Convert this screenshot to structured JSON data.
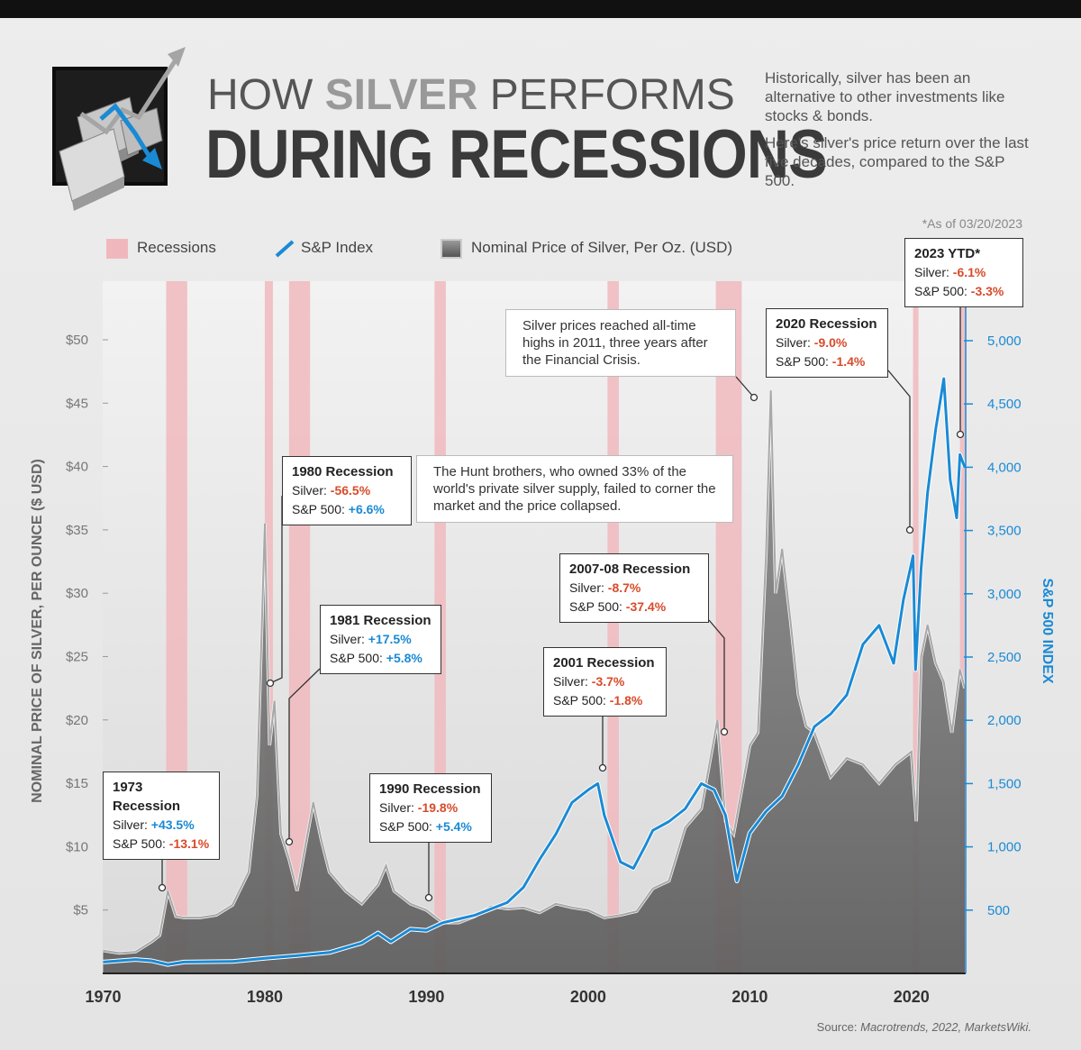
{
  "header": {
    "title_pre": "HOW ",
    "title_highlight": "SILVER",
    "title_post": " PERFORMS",
    "title_line2": "DURING RECESSIONS",
    "intro_1": "Historically, silver has been an alternative to other investments like stocks & bonds.",
    "intro_2": "Here's silver's price return over the last five decades, compared to the S&P 500.",
    "as_of": "*As of 03/20/2023"
  },
  "legend": {
    "recessions": "Recessions",
    "sp": "S&P Index",
    "silver": "Nominal Price of Silver, Per Oz. (USD)"
  },
  "source_label": "Source:",
  "source_text": "Macrotrends, 2022, MarketsWiki.",
  "colors": {
    "recession": "#f0b8bd",
    "sp_line": "#1a8ad4",
    "silver_line": "#a8a8a8",
    "negative": "#d84b2a",
    "positive": "#1a8ad4"
  },
  "chart_data": {
    "type": "area",
    "title": "",
    "x_range": [
      1970,
      2023.3
    ],
    "x_ticks": [
      "1970",
      "1980",
      "1990",
      "2000",
      "2010",
      "2020"
    ],
    "left_axis": {
      "label": "NOMINAL PRICE OF SILVER, PER OUNCE ($ USD)",
      "range": [
        0,
        55
      ],
      "ticks": [
        "$5",
        "$10",
        "$15",
        "$20",
        "$25",
        "$30",
        "$35",
        "$40",
        "$45",
        "$50"
      ]
    },
    "right_axis": {
      "label": "S&P 500 INDEX",
      "range": [
        0,
        5500
      ],
      "ticks": [
        "500",
        "1,000",
        "1,500",
        "2,000",
        "2,500",
        "3,000",
        "3,500",
        "4,000",
        "4,500",
        "5,000"
      ]
    },
    "recessions": [
      [
        1973.9,
        1975.2
      ],
      [
        1980.0,
        1980.5
      ],
      [
        1981.5,
        1982.8
      ],
      [
        1990.5,
        1991.2
      ],
      [
        2001.2,
        2001.9
      ],
      [
        2007.9,
        2009.5
      ],
      [
        2020.1,
        2020.4
      ],
      [
        2023.0,
        2023.3
      ]
    ],
    "series": [
      {
        "name": "Nominal Price of Silver, Per Oz. (USD)",
        "axis": "left",
        "x": [
          1970,
          1971,
          1972,
          1973,
          1973.5,
          1974,
          1974.5,
          1975,
          1976,
          1977,
          1978,
          1979,
          1979.5,
          1980,
          1980.3,
          1980.6,
          1981,
          1981.5,
          1982,
          1982.5,
          1983,
          1983.5,
          1984,
          1985,
          1986,
          1987,
          1987.5,
          1988,
          1989,
          1990,
          1991,
          1992,
          1993,
          1994,
          1995,
          1996,
          1997,
          1998,
          1999,
          2000,
          2001,
          2002,
          2003,
          2004,
          2005,
          2006,
          2007,
          2008,
          2008.5,
          2009,
          2010,
          2010.5,
          2011,
          2011.3,
          2011.6,
          2012,
          2012.5,
          2013,
          2013.5,
          2014,
          2015,
          2016,
          2017,
          2018,
          2019,
          2020,
          2020.3,
          2020.6,
          2021,
          2021.5,
          2022,
          2022.5,
          2023,
          2023.3
        ],
        "y": [
          1.8,
          1.6,
          1.7,
          2.5,
          3.0,
          6.5,
          4.5,
          4.4,
          4.4,
          4.6,
          5.4,
          8.0,
          14.0,
          35.5,
          18.0,
          21.5,
          11.0,
          9.0,
          6.5,
          10.0,
          13.5,
          10.5,
          8.0,
          6.5,
          5.5,
          7.0,
          8.5,
          6.5,
          5.5,
          5.0,
          4.0,
          4.0,
          4.5,
          5.3,
          5.1,
          5.2,
          4.8,
          5.5,
          5.2,
          5.0,
          4.4,
          4.6,
          4.9,
          6.7,
          7.3,
          11.5,
          13.0,
          20.0,
          12.0,
          11.0,
          18.0,
          19.0,
          33.0,
          46.0,
          30.0,
          33.5,
          28.0,
          22.0,
          19.5,
          19.0,
          15.5,
          17.0,
          16.5,
          15.0,
          16.5,
          17.5,
          12.0,
          25.0,
          27.5,
          24.5,
          23.0,
          19.0,
          24.0,
          22.5
        ]
      },
      {
        "name": "S&P Index",
        "axis": "right",
        "x": [
          1970,
          1972,
          1973,
          1974,
          1975,
          1978,
          1980,
          1982,
          1984,
          1986,
          1987,
          1987.8,
          1989,
          1990,
          1991,
          1993,
          1995,
          1996,
          1997,
          1998,
          1999,
          2000,
          2000.6,
          2001,
          2002,
          2002.8,
          2003.5,
          2004,
          2005,
          2006,
          2007,
          2007.8,
          2008.5,
          2009.2,
          2010,
          2011,
          2012,
          2013,
          2014,
          2015,
          2016,
          2017,
          2018,
          2018.9,
          2019.5,
          2020.1,
          2020.25,
          2020.6,
          2021,
          2021.5,
          2022,
          2022.4,
          2022.8,
          2023,
          2023.3
        ],
        "y": [
          90,
          110,
          100,
          70,
          90,
          95,
          120,
          140,
          165,
          240,
          320,
          250,
          350,
          340,
          400,
          460,
          560,
          680,
          900,
          1100,
          1350,
          1450,
          1500,
          1250,
          880,
          830,
          1000,
          1130,
          1200,
          1300,
          1500,
          1450,
          1250,
          730,
          1110,
          1280,
          1400,
          1650,
          1950,
          2050,
          2200,
          2600,
          2750,
          2450,
          2950,
          3300,
          2400,
          3200,
          3800,
          4300,
          4700,
          3900,
          3600,
          4100,
          4000
        ]
      }
    ]
  },
  "annotations": [
    {
      "title": "1973 Recession",
      "silver": "+43.5%",
      "silver_sign": "pos",
      "sp": "-13.1%",
      "sp_sign": "neg"
    },
    {
      "title": "1980 Recession",
      "silver": "-56.5%",
      "silver_sign": "neg",
      "sp": "+6.6%",
      "sp_sign": "pos"
    },
    {
      "title": "1981 Recession",
      "silver": "+17.5%",
      "silver_sign": "pos",
      "sp": "+5.8%",
      "sp_sign": "pos"
    },
    {
      "title": "1990 Recession",
      "silver": "-19.8%",
      "silver_sign": "neg",
      "sp": "+5.4%",
      "sp_sign": "pos"
    },
    {
      "title": "2001 Recession",
      "silver": "-3.7%",
      "silver_sign": "neg",
      "sp": "-1.8%",
      "sp_sign": "neg"
    },
    {
      "title": "2007-08 Recession",
      "silver": "-8.7%",
      "silver_sign": "neg",
      "sp": "-37.4%",
      "sp_sign": "neg"
    },
    {
      "title": "2020 Recession",
      "silver": "-9.0%",
      "silver_sign": "neg",
      "sp": "-1.4%",
      "sp_sign": "neg"
    },
    {
      "title": "2023 YTD*",
      "silver": "-6.1%",
      "silver_sign": "neg",
      "sp": "-3.3%",
      "sp_sign": "neg"
    }
  ],
  "row_labels": {
    "silver": "Silver:",
    "sp": "S&P 500:"
  },
  "notes": {
    "hunt": "The Hunt brothers, who owned 33% of the world's private silver supply, failed to corner the market and the price collapsed.",
    "ath": "Silver prices reached all-time highs in 2011, three years after the Financial Crisis."
  }
}
